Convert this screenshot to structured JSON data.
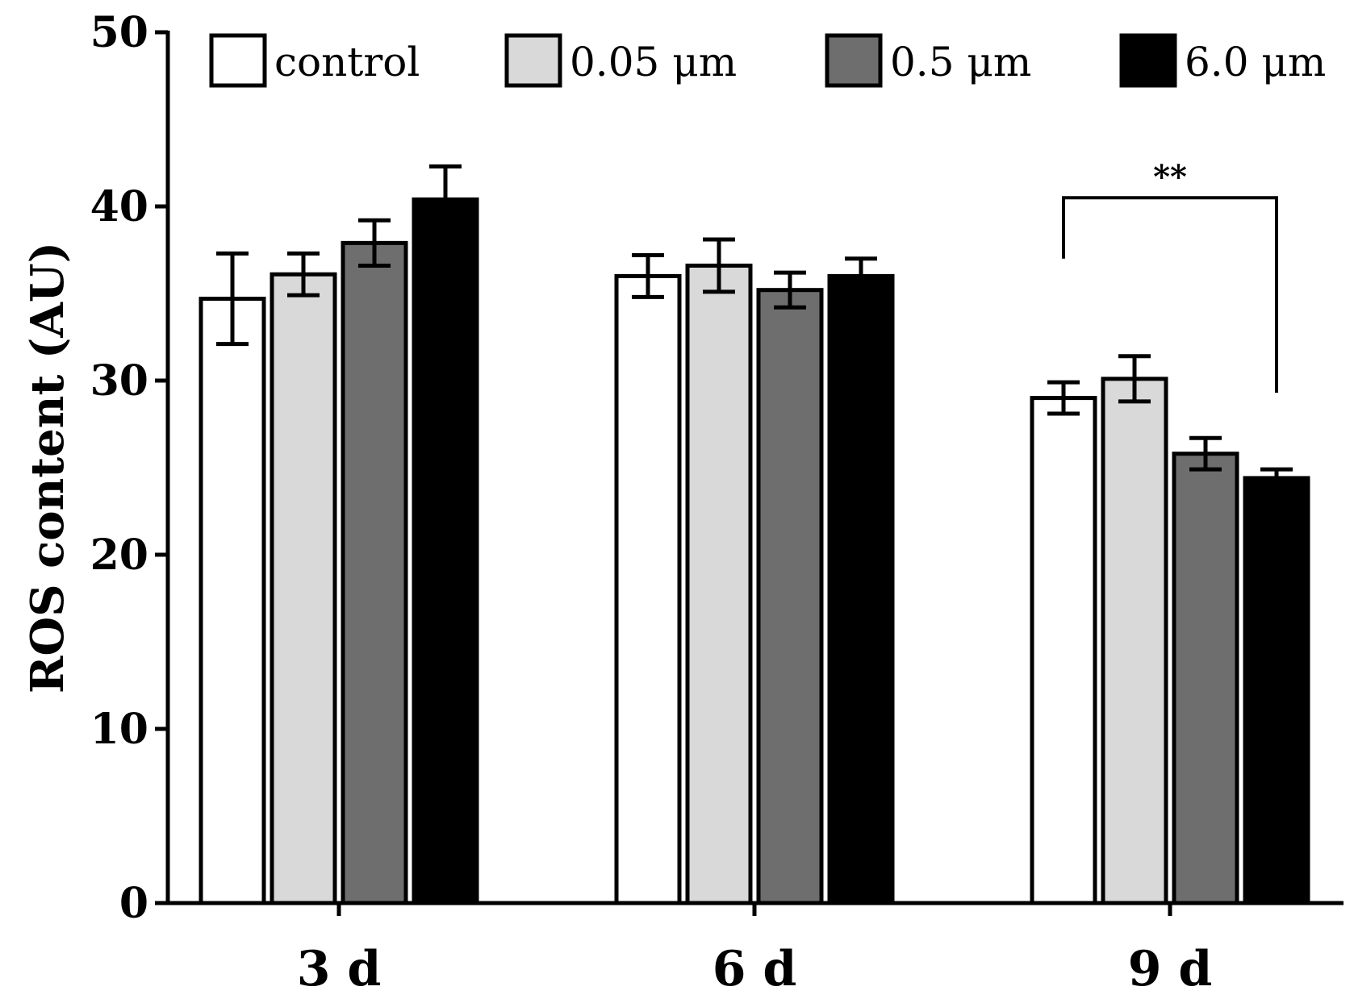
{
  "chart_data": {
    "type": "bar",
    "title": "",
    "xlabel": "",
    "ylabel": "ROS content (AU)",
    "ylim": [
      0,
      50
    ],
    "yticks": [
      "0",
      "10",
      "20",
      "30",
      "40",
      "50"
    ],
    "categories": [
      "3 d",
      "6 d",
      "9 d"
    ],
    "series": [
      {
        "name": "control",
        "color": "#ffffff",
        "values": [
          34.7,
          36.0,
          29.0
        ],
        "errors": [
          2.6,
          1.2,
          0.9
        ]
      },
      {
        "name": "0.05 μm",
        "color": "#d9d9d9",
        "values": [
          36.1,
          36.6,
          30.1
        ],
        "errors": [
          1.2,
          1.5,
          1.3
        ]
      },
      {
        "name": "0.5 μm",
        "color": "#6e6e6e",
        "values": [
          37.9,
          35.2,
          25.8
        ],
        "errors": [
          1.3,
          1.0,
          0.9
        ]
      },
      {
        "name": "6.0 μm",
        "color": "#000000",
        "values": [
          40.4,
          36.0,
          24.4
        ],
        "errors": [
          1.9,
          1.0,
          0.5
        ]
      }
    ],
    "annotations": [
      {
        "text": "**",
        "category": "9 d",
        "from_series": "control",
        "to_series": "6.0 μm"
      }
    ],
    "legend_position": "top"
  }
}
